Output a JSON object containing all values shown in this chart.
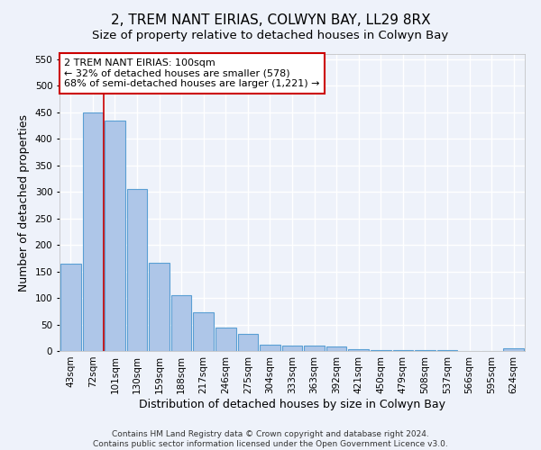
{
  "title": "2, TREM NANT EIRIAS, COLWYN BAY, LL29 8RX",
  "subtitle": "Size of property relative to detached houses in Colwyn Bay",
  "xlabel": "Distribution of detached houses by size in Colwyn Bay",
  "ylabel": "Number of detached properties",
  "categories": [
    "43sqm",
    "72sqm",
    "101sqm",
    "130sqm",
    "159sqm",
    "188sqm",
    "217sqm",
    "246sqm",
    "275sqm",
    "304sqm",
    "333sqm",
    "363sqm",
    "392sqm",
    "421sqm",
    "450sqm",
    "479sqm",
    "508sqm",
    "537sqm",
    "566sqm",
    "595sqm",
    "624sqm"
  ],
  "values": [
    164,
    450,
    435,
    306,
    167,
    106,
    73,
    44,
    33,
    12,
    11,
    10,
    8,
    3,
    2,
    1,
    1,
    1,
    0,
    0,
    5
  ],
  "bar_color": "#aec6e8",
  "bar_edge_color": "#5a9fd4",
  "vline_x_index": 2,
  "vline_color": "#cc0000",
  "annotation_line1": "2 TREM NANT EIRIAS: 100sqm",
  "annotation_line2": "← 32% of detached houses are smaller (578)",
  "annotation_line3": "68% of semi-detached houses are larger (1,221) →",
  "annotation_box_color": "#cc0000",
  "ylim": [
    0,
    560
  ],
  "yticks": [
    0,
    50,
    100,
    150,
    200,
    250,
    300,
    350,
    400,
    450,
    500,
    550
  ],
  "footer_line1": "Contains HM Land Registry data © Crown copyright and database right 2024.",
  "footer_line2": "Contains public sector information licensed under the Open Government Licence v3.0.",
  "background_color": "#eef2fa",
  "grid_color": "#ffffff",
  "title_fontsize": 11,
  "subtitle_fontsize": 9.5,
  "label_fontsize": 9,
  "tick_fontsize": 7.5,
  "footer_fontsize": 6.5,
  "annotation_fontsize": 8
}
